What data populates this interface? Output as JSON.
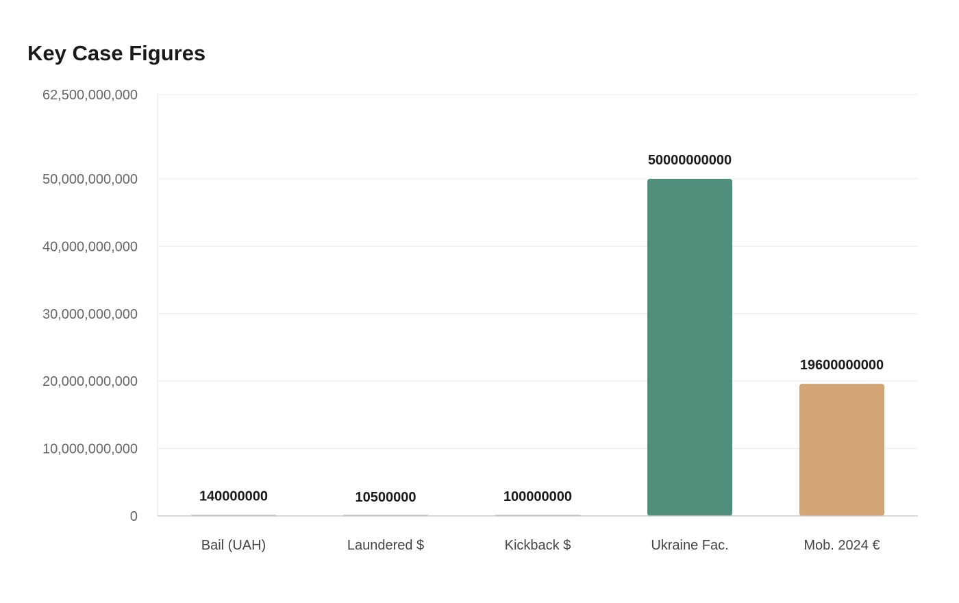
{
  "chart_data": {
    "type": "bar",
    "title": "Key Case Figures",
    "xlabel": "",
    "ylabel": "",
    "categories": [
      "Bail (UAH)",
      "Laundered $",
      "Kickback $",
      "Ukraine Fac.",
      "Mob. 2024 €"
    ],
    "values": [
      140000000,
      10500000,
      100000000,
      50000000000,
      19600000000
    ],
    "value_labels": [
      "140000000",
      "10500000",
      "100000000",
      "50000000000",
      "19600000000"
    ],
    "colors": [
      "#aaaaaa",
      "#aaaaaa",
      "#aaaaaa",
      "#4f8e7b",
      "#d4a574"
    ],
    "ylim": [
      0,
      62500000000
    ],
    "y_ticks": [
      0,
      10000000000,
      20000000000,
      30000000000,
      40000000000,
      50000000000,
      62500000000
    ],
    "y_tick_labels": [
      "0",
      "10,000,000,000",
      "20,000,000,000",
      "30,000,000,000",
      "40,000,000,000",
      "50,000,000,000",
      "62,500,000,000"
    ],
    "grid": true,
    "legend": "none"
  }
}
